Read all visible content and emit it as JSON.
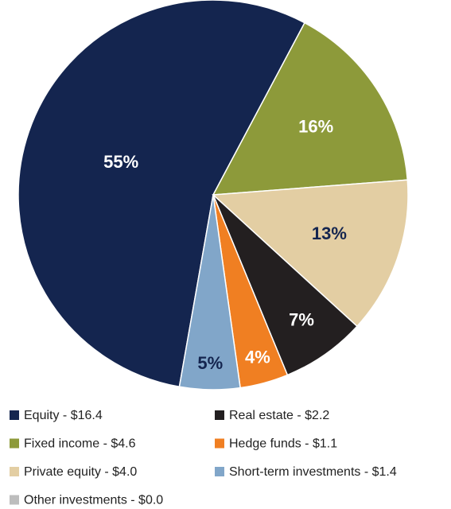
{
  "chart_data": {
    "type": "pie",
    "categories": [
      "Equity - $16.4",
      "Fixed income - $4.6",
      "Private equity - $4.0",
      "Real estate - $2.2",
      "Hedge funds - $1.1",
      "Short-term investments - $1.4",
      "Other investments - $0.0"
    ],
    "values": [
      55,
      16,
      13,
      7,
      4,
      5,
      0
    ],
    "value_labels": [
      "55%",
      "16%",
      "13%",
      "7%",
      "4%",
      "5%",
      null
    ],
    "colors": [
      "#14254f",
      "#8d9a3a",
      "#e3cea3",
      "#231f20",
      "#f07f22",
      "#81a6c9",
      "#bdbdbd"
    ]
  }
}
